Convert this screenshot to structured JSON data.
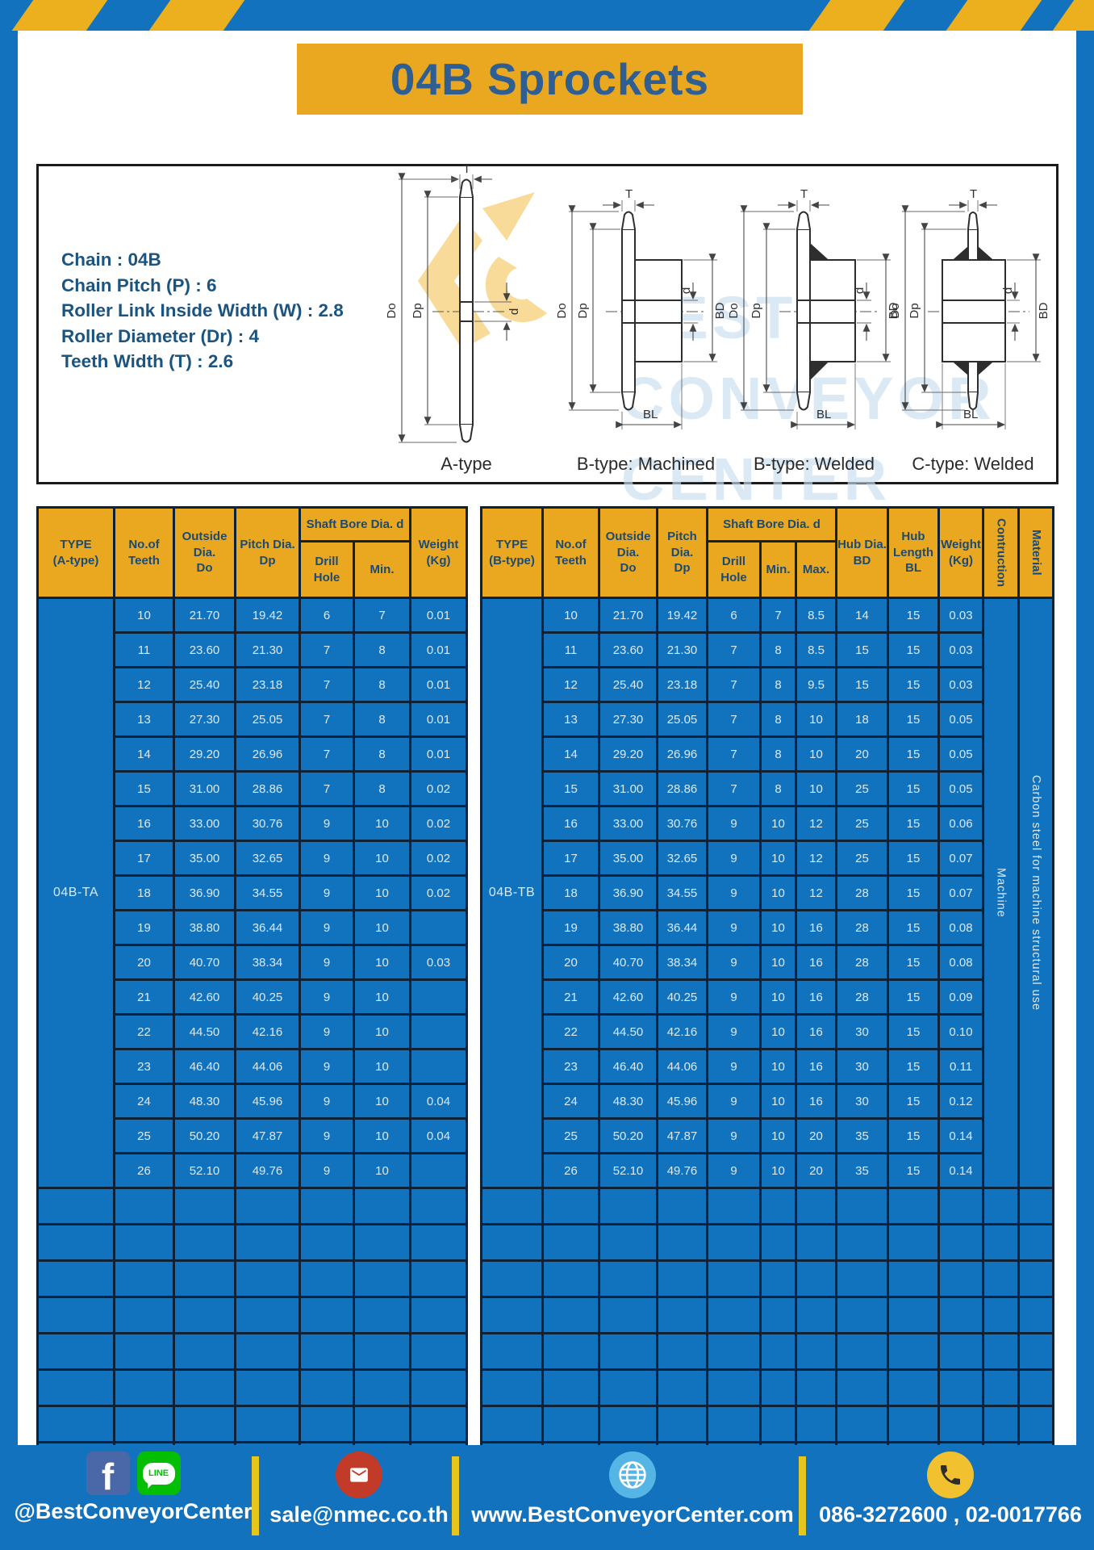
{
  "colors": {
    "frame_blue": "#1372bd",
    "accent_yellow": "#e9a81f",
    "table_body_blue": "#1173bd",
    "table_border_navy": "#0d2137",
    "title_text_blue": "#2f5f92"
  },
  "header": {
    "title": "04B Sprockets"
  },
  "specs": {
    "lines": [
      "Chain : 04B",
      "Chain Pitch (P) : 6",
      "Roller Link Inside Width (W) : 2.8",
      "Roller Diameter (Dr) : 4",
      "Teeth Width (T) : 2.6"
    ]
  },
  "diagram": {
    "dims": {
      "t": "T",
      "outer": "Do",
      "pitch": "Dp",
      "bore": "d",
      "hub": "BD",
      "hub_len": "BL"
    },
    "type_labels": [
      "A-type",
      "B-type: Machined",
      "B-type: Welded",
      "C-type: Welded"
    ],
    "watermark_lines": [
      "BEST",
      "CONVEYOR",
      "CENTER"
    ]
  },
  "table_a": {
    "header": {
      "type_line1": "TYPE",
      "type_line2": "(A-type)",
      "teeth_line1": "No.of",
      "teeth_line2": "Teeth",
      "outside_line1": "Outside",
      "outside_line2": "Dia.",
      "outside_line3": "Do",
      "pitch_line1": "Pitch Dia.",
      "pitch_line2": "Dp",
      "shaft_bore": "Shaft Bore Dia. d",
      "drill_hole": "Drill Hole",
      "min": "Min.",
      "weight_line1": "Weight",
      "weight_line2": "(Kg)"
    },
    "type_label": "04B-TA",
    "empty_rows": 8,
    "rows": [
      [
        "10",
        "21.70",
        "19.42",
        "6",
        "7",
        "0.01"
      ],
      [
        "11",
        "23.60",
        "21.30",
        "7",
        "8",
        "0.01"
      ],
      [
        "12",
        "25.40",
        "23.18",
        "7",
        "8",
        "0.01"
      ],
      [
        "13",
        "27.30",
        "25.05",
        "7",
        "8",
        "0.01"
      ],
      [
        "14",
        "29.20",
        "26.96",
        "7",
        "8",
        "0.01"
      ],
      [
        "15",
        "31.00",
        "28.86",
        "7",
        "8",
        "0.02"
      ],
      [
        "16",
        "33.00",
        "30.76",
        "9",
        "10",
        "0.02"
      ],
      [
        "17",
        "35.00",
        "32.65",
        "9",
        "10",
        "0.02"
      ],
      [
        "18",
        "36.90",
        "34.55",
        "9",
        "10",
        "0.02"
      ],
      [
        "19",
        "38.80",
        "36.44",
        "9",
        "10",
        ""
      ],
      [
        "20",
        "40.70",
        "38.34",
        "9",
        "10",
        "0.03"
      ],
      [
        "21",
        "42.60",
        "40.25",
        "9",
        "10",
        ""
      ],
      [
        "22",
        "44.50",
        "42.16",
        "9",
        "10",
        ""
      ],
      [
        "23",
        "46.40",
        "44.06",
        "9",
        "10",
        ""
      ],
      [
        "24",
        "48.30",
        "45.96",
        "9",
        "10",
        "0.04"
      ],
      [
        "25",
        "50.20",
        "47.87",
        "9",
        "10",
        "0.04"
      ],
      [
        "26",
        "52.10",
        "49.76",
        "9",
        "10",
        ""
      ]
    ]
  },
  "table_b": {
    "header": {
      "type_line1": "TYPE",
      "type_line2": "(B-type)",
      "teeth_line1": "No.of",
      "teeth_line2": "Teeth",
      "outside_line1": "Outside",
      "outside_line2": "Dia.",
      "outside_line3": "Do",
      "pitch_line1": "Pitch Dia.",
      "pitch_line2": "Dp",
      "shaft_bore": "Shaft Bore Dia. d",
      "drill_hole": "Drill Hole",
      "min": "Min.",
      "max": "Max.",
      "hub_dia_line1": "Hub Dia.",
      "hub_dia_line2": "BD",
      "hub_len_line1": "Hub",
      "hub_len_line2": "Length",
      "hub_len_line3": "BL",
      "weight_line1": "Weight",
      "weight_line2": "(Kg)",
      "construction": "Contruction",
      "material": "Material"
    },
    "type_label": "04B-TB",
    "construction_value": "Machine",
    "material_value": "Carbon steel for machine structural use",
    "empty_rows": 8,
    "rows": [
      [
        "10",
        "21.70",
        "19.42",
        "6",
        "7",
        "8.5",
        "14",
        "15",
        "0.03"
      ],
      [
        "11",
        "23.60",
        "21.30",
        "7",
        "8",
        "8.5",
        "15",
        "15",
        "0.03"
      ],
      [
        "12",
        "25.40",
        "23.18",
        "7",
        "8",
        "9.5",
        "15",
        "15",
        "0.03"
      ],
      [
        "13",
        "27.30",
        "25.05",
        "7",
        "8",
        "10",
        "18",
        "15",
        "0.05"
      ],
      [
        "14",
        "29.20",
        "26.96",
        "7",
        "8",
        "10",
        "20",
        "15",
        "0.05"
      ],
      [
        "15",
        "31.00",
        "28.86",
        "7",
        "8",
        "10",
        "25",
        "15",
        "0.05"
      ],
      [
        "16",
        "33.00",
        "30.76",
        "9",
        "10",
        "12",
        "25",
        "15",
        "0.06"
      ],
      [
        "17",
        "35.00",
        "32.65",
        "9",
        "10",
        "12",
        "25",
        "15",
        "0.07"
      ],
      [
        "18",
        "36.90",
        "34.55",
        "9",
        "10",
        "12",
        "28",
        "15",
        "0.07"
      ],
      [
        "19",
        "38.80",
        "36.44",
        "9",
        "10",
        "16",
        "28",
        "15",
        "0.08"
      ],
      [
        "20",
        "40.70",
        "38.34",
        "9",
        "10",
        "16",
        "28",
        "15",
        "0.08"
      ],
      [
        "21",
        "42.60",
        "40.25",
        "9",
        "10",
        "16",
        "28",
        "15",
        "0.09"
      ],
      [
        "22",
        "44.50",
        "42.16",
        "9",
        "10",
        "16",
        "30",
        "15",
        "0.10"
      ],
      [
        "23",
        "46.40",
        "44.06",
        "9",
        "10",
        "16",
        "30",
        "15",
        "0.11"
      ],
      [
        "24",
        "48.30",
        "45.96",
        "9",
        "10",
        "16",
        "30",
        "15",
        "0.12"
      ],
      [
        "25",
        "50.20",
        "47.87",
        "9",
        "10",
        "20",
        "35",
        "15",
        "0.14"
      ],
      [
        "26",
        "52.10",
        "49.76",
        "9",
        "10",
        "20",
        "35",
        "15",
        "0.14"
      ]
    ]
  },
  "footer": {
    "facebook_letter": "f",
    "line_icon_text": "LINE",
    "social_label": "@BestConveyorCenter",
    "email": "sale@nmec.co.th",
    "website": "www.BestConveyorCenter.com",
    "phone": "086-3272600 , 02-0017766"
  }
}
